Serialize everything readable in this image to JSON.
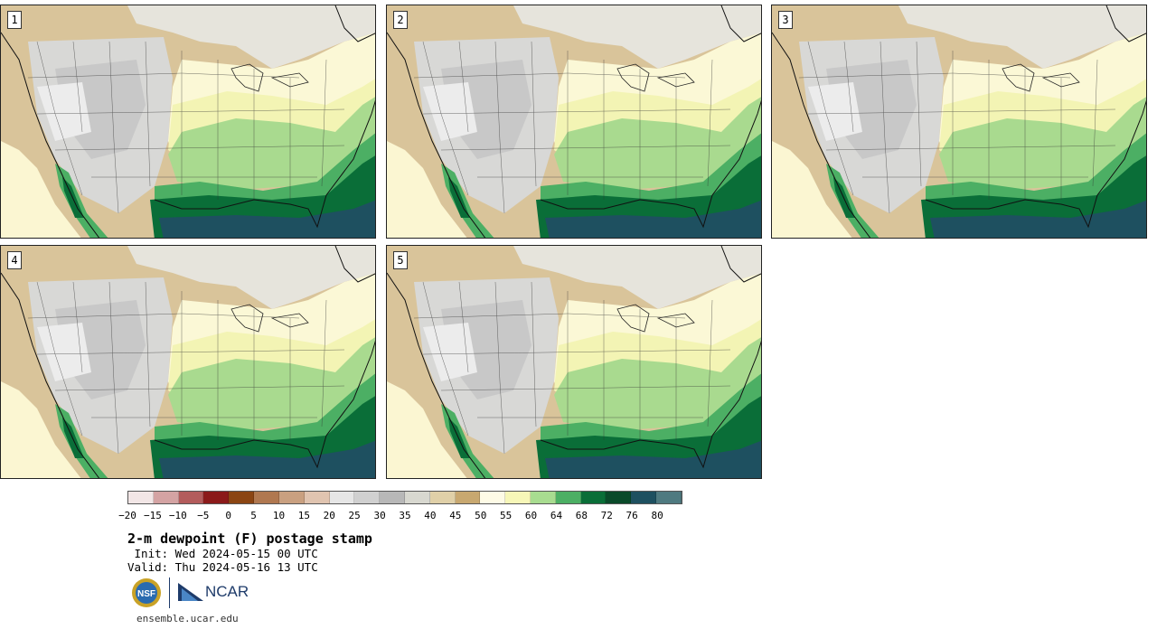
{
  "panels": [
    {
      "label": "1"
    },
    {
      "label": "2"
    },
    {
      "label": "3"
    },
    {
      "label": "4"
    },
    {
      "label": "5"
    }
  ],
  "colorbar": {
    "ticks": [
      "−20",
      "−15",
      "−10",
      "−5",
      "0",
      "5",
      "10",
      "15",
      "20",
      "25",
      "30",
      "35",
      "40",
      "45",
      "50",
      "55",
      "60",
      "64",
      "68",
      "72",
      "76",
      "80"
    ],
    "colors": [
      "#f2e6e6",
      "#d4a3a3",
      "#b35c5c",
      "#8b1a1a",
      "#8b4513",
      "#b07850",
      "#c9a080",
      "#e0c4b0",
      "#e6e6e6",
      "#d0d0d0",
      "#b8b8b8",
      "#d8d8d0",
      "#e0d0a8",
      "#c8a870",
      "#fefbe6",
      "#f7f7b8",
      "#a8dc90",
      "#4caf64",
      "#0a6e38",
      "#0a4a2a",
      "#1e5060",
      "#4f7a80"
    ]
  },
  "title": "2-m dewpoint (F) postage stamp",
  "init": " Init: Wed 2024-05-15 00 UTC",
  "valid": "Valid: Thu 2024-05-16 13 UTC",
  "logos": {
    "nsf": "NSF",
    "ncar": "NCAR"
  },
  "website": "ensemble.ucar.edu"
}
